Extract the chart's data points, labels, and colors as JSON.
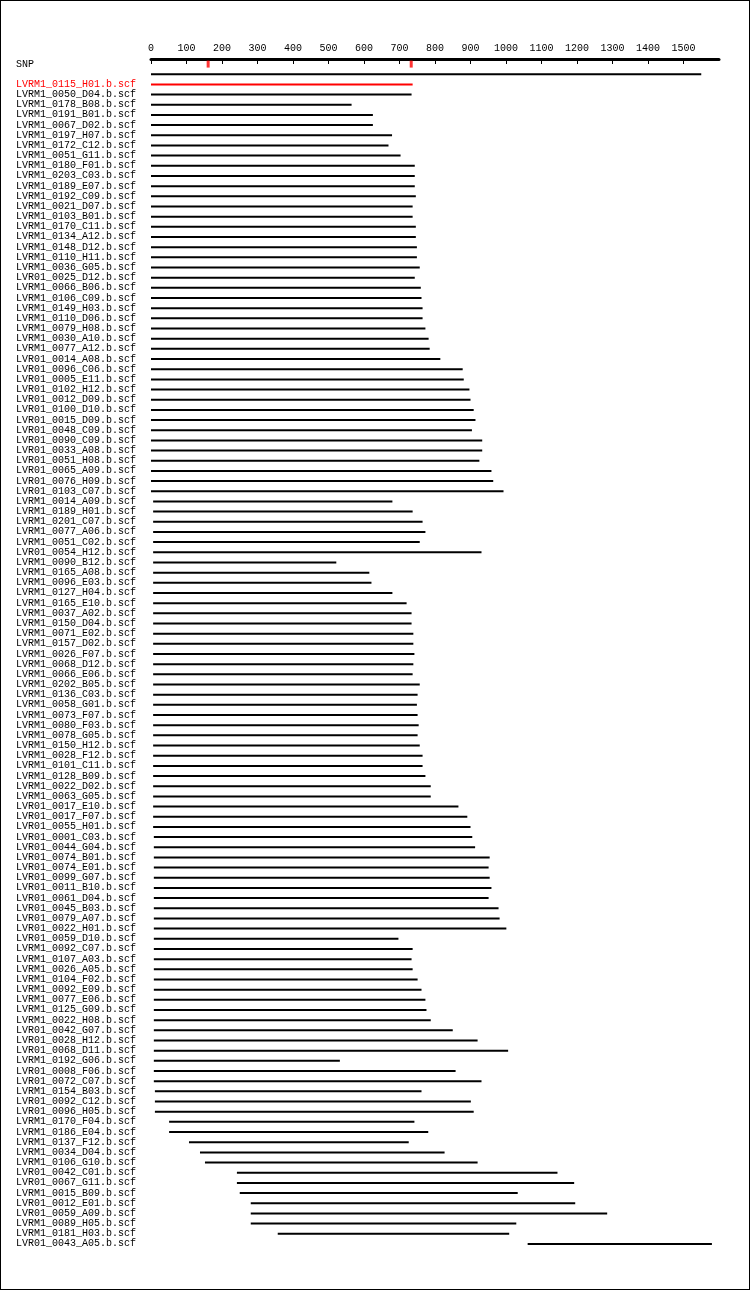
{
  "chart_data": {
    "type": "bar",
    "orientation": "horizontal",
    "categories": [
      "SNP",
      null,
      "LVRM1_0115_H01.b.scf",
      "LVRM1_0050_D04.b.scf",
      "LVRM1_0178_B08.b.scf",
      "LVRM1_0191_B01.b.scf",
      "LVRM1_0067_D02.b.scf",
      "LVRM1_0197_H07.b.scf",
      "LVRM1_0172_C12.b.scf",
      "LVRM1_0051_G11.b.scf",
      "LVRM1_0180_F01.b.scf",
      "LVRM1_0203_C03.b.scf",
      "LVRM1_0189_E07.b.scf",
      "LVRM1_0192_C09.b.scf",
      "LVRM1_0021_D07.b.scf",
      "LVRM1_0103_B01.b.scf",
      "LVRM1_0170_C11.b.scf",
      "LVRM1_0134_A12.b.scf",
      "LVRM1_0148_D12.b.scf",
      "LVRM1_0110_H11.b.scf",
      "LVRM1_0036_G05.b.scf",
      "LVR01_0025_D12.b.scf",
      "LVRM1_0066_B06.b.scf",
      "LVRM1_0106_C09.b.scf",
      "LVRM1_0149_H03.b.scf",
      "LVRM1_0110_D06.b.scf",
      "LVRM1_0079_H08.b.scf",
      "LVRM1_0030_A10.b.scf",
      "LVRM1_0077_A12.b.scf",
      "LVR01_0014_A08.b.scf",
      "LVR01_0096_C06.b.scf",
      "LVR01_0005_E11.b.scf",
      "LVR01_0102_H12.b.scf",
      "LVR01_0012_D09.b.scf",
      "LVR01_0100_D10.b.scf",
      "LVR01_0015_D09.b.scf",
      "LVR01_0048_C09.b.scf",
      "LVR01_0090_C09.b.scf",
      "LVR01_0033_A08.b.scf",
      "LVR01_0051_H08.b.scf",
      "LVR01_0065_A09.b.scf",
      "LVR01_0076_H09.b.scf",
      "LVR01_0103_C07.b.scf",
      "LVRM1_0014_A09.b.scf",
      "LVRM1_0189_H01.b.scf",
      "LVRM1_0201_C07.b.scf",
      "LVRM1_0077_A06.b.scf",
      "LVRM1_0051_C02.b.scf",
      "LVR01_0054_H12.b.scf",
      "LVRM1_0090_B12.b.scf",
      "LVRM1_0165_A08.b.scf",
      "LVRM1_0096_E03.b.scf",
      "LVRM1_0127_H04.b.scf",
      "LVRM1_0165_E10.b.scf",
      "LVRM1_0037_A02.b.scf",
      "LVRM1_0150_D04.b.scf",
      "LVRM1_0071_E02.b.scf",
      "LVRM1_0157_D02.b.scf",
      "LVRM1_0026_F07.b.scf",
      "LVRM1_0068_D12.b.scf",
      "LVRM1_0066_E06.b.scf",
      "LVRM1_0202_B05.b.scf",
      "LVRM1_0136_C03.b.scf",
      "LVRM1_0058_G01.b.scf",
      "LVRM1_0073_F07.b.scf",
      "LVRM1_0080_F03.b.scf",
      "LVRM1_0078_G05.b.scf",
      "LVRM1_0150_H12.b.scf",
      "LVRM1_0028_F12.b.scf",
      "LVRM1_0101_C11.b.scf",
      "LVRM1_0128_B09.b.scf",
      "LVRM1_0022_D02.b.scf",
      "LVRM1_0063_G05.b.scf",
      "LVR01_0017_E10.b.scf",
      "LVR01_0017_F07.b.scf",
      "LVR01_0055_H01.b.scf",
      "LVR01_0001_C03.b.scf",
      "LVR01_0044_G04.b.scf",
      "LVR01_0074_B01.b.scf",
      "LVR01_0074_E01.b.scf",
      "LVR01_0099_G07.b.scf",
      "LVR01_0011_B10.b.scf",
      "LVR01_0061_D04.b.scf",
      "LVR01_0045_B03.b.scf",
      "LVR01_0079_A07.b.scf",
      "LVR01_0022_H01.b.scf",
      "LVR01_0059_D10.b.scf",
      "LVRM1_0092_C07.b.scf",
      "LVRM1_0107_A03.b.scf",
      "LVRM1_0026_A05.b.scf",
      "LVRM1_0104_F02.b.scf",
      "LVRM1_0092_E09.b.scf",
      "LVRM1_0077_E06.b.scf",
      "LVRM1_0125_G09.b.scf",
      "LVRM1_0022_H08.b.scf",
      "LVR01_0042_G07.b.scf",
      "LVR01_0028_H12.b.scf",
      "LVR01_0068_D11.b.scf",
      "LVRM1_0192_G06.b.scf",
      "LVR01_0008_F06.b.scf",
      "LVR01_0072_C07.b.scf",
      "LVRM1_0154_B03.b.scf",
      "LVR01_0092_C12.b.scf",
      "LVR01_0096_H05.b.scf",
      "LVRM1_0170_F04.b.scf",
      "LVRM1_0186_E04.b.scf",
      "LVRM1_0137_F12.b.scf",
      "LVRM1_0034_D04.b.scf",
      "LVRM1_0106_G10.b.scf",
      "LVR01_0042_C01.b.scf",
      "LVR01_0067_G11.b.scf",
      "LVRM1_0015_B09.b.scf",
      "LVR01_0012_E01.b.scf",
      "LVR01_0059_A09.b.scf",
      "LVRM1_0089_H05.b.scf",
      "LVRM1_0181_H03.b.scf",
      "LVR01_0043_A05.b.scf"
    ],
    "series": [
      {
        "type": "bar",
        "values": [
          null,
          1550,
          737,
          734,
          565,
          625,
          625,
          679,
          669,
          703,
          743,
          743,
          743,
          746,
          737,
          737,
          746,
          746,
          749,
          749,
          757,
          743,
          760,
          762,
          765,
          765,
          773,
          782,
          785,
          815,
          878,
          881,
          897,
          900,
          909,
          914,
          904,
          933,
          933,
          925,
          959,
          964,
          993,
          674,
          731,
          759,
          767,
          751,
          925,
          516,
          609,
          615,
          674,
          714,
          728,
          728,
          733,
          733,
          736,
          733,
          731,
          751,
          745,
          743,
          745,
          748,
          745,
          751,
          759,
          759,
          767,
          782,
          782,
          860,
          885,
          894,
          897,
          905,
          946,
          943,
          946,
          951,
          943,
          971,
          974,
          993,
          689,
          729,
          726,
          729,
          743,
          754,
          765,
          768,
          780,
          842,
          912,
          998,
          524,
          850,
          923,
          751,
          890,
          898,
          691,
          730,
          619,
          689,
          768,
          903,
          950,
          783,
          914,
          1004,
          748,
          652,
          519
        ],
        "base": [
          null,
          0,
          0,
          0,
          0,
          0,
          0,
          0,
          0,
          0,
          0,
          0,
          0,
          0,
          0,
          0,
          0,
          0,
          0,
          0,
          0,
          0,
          0,
          0,
          0,
          0,
          0,
          0,
          0,
          0,
          0,
          0,
          0,
          0,
          0,
          0,
          0,
          0,
          0,
          0,
          0,
          0,
          0,
          6,
          6,
          6,
          6,
          6,
          6,
          6,
          6,
          6,
          6,
          6,
          6,
          6,
          6,
          6,
          6,
          6,
          6,
          6,
          6,
          6,
          6,
          6,
          6,
          6,
          6,
          6,
          6,
          6,
          6,
          6,
          6,
          6,
          8,
          8,
          8,
          8,
          8,
          8,
          8,
          8,
          8,
          8,
          8,
          8,
          8,
          8,
          8,
          8,
          8,
          8,
          8,
          8,
          8,
          8,
          8,
          8,
          8,
          11,
          11,
          11,
          51,
          51,
          107,
          138,
          152,
          242,
          242,
          250,
          281,
          281,
          281,
          357,
          1061
        ],
        "colors": [
          "#000000",
          "#000000",
          "#ff0000",
          "#000000",
          "#000000",
          "#000000",
          "#000000",
          "#000000",
          "#000000",
          "#000000",
          "#000000",
          "#000000",
          "#000000",
          "#000000",
          "#000000",
          "#000000",
          "#000000",
          "#000000",
          "#000000",
          "#000000",
          "#000000",
          "#000000",
          "#000000",
          "#000000",
          "#000000",
          "#000000",
          "#000000",
          "#000000",
          "#000000",
          "#000000",
          "#000000",
          "#000000",
          "#000000",
          "#000000",
          "#000000",
          "#000000",
          "#000000",
          "#000000",
          "#000000",
          "#000000",
          "#000000",
          "#000000",
          "#000000",
          "#000000",
          "#000000",
          "#000000",
          "#000000",
          "#000000",
          "#000000",
          "#000000",
          "#000000",
          "#000000",
          "#000000",
          "#000000",
          "#000000",
          "#000000",
          "#000000",
          "#000000",
          "#000000",
          "#000000",
          "#000000",
          "#000000",
          "#000000",
          "#000000",
          "#000000",
          "#000000",
          "#000000",
          "#000000",
          "#000000",
          "#000000",
          "#000000",
          "#000000",
          "#000000",
          "#000000",
          "#000000",
          "#000000",
          "#000000",
          "#000000",
          "#000000",
          "#000000",
          "#000000",
          "#000000",
          "#000000",
          "#000000",
          "#000000",
          "#000000",
          "#000000",
          "#000000",
          "#000000",
          "#000000",
          "#000000",
          "#000000",
          "#000000",
          "#000000",
          "#000000",
          "#000000",
          "#000000",
          "#000000",
          "#000000",
          "#000000",
          "#000000",
          "#000000",
          "#000000",
          "#000000",
          "#000000",
          "#000000",
          "#000000",
          "#000000",
          "#000000",
          "#000000",
          "#000000",
          "#000000",
          "#000000",
          "#000000",
          "#000000",
          "#000000",
          "#000000"
        ]
      },
      {
        "type": "scatter",
        "x": [
          "SNP",
          "SNP"
        ],
        "values": [
          161,
          733
        ],
        "color": "#ff0000",
        "marker": "square"
      }
    ],
    "xlim": [
      0,
      1600
    ],
    "xticks": [
      0,
      100,
      200,
      300,
      400,
      500,
      600,
      700,
      800,
      900,
      1000,
      1100,
      1200,
      1300,
      1400,
      1500
    ],
    "grid": false
  }
}
